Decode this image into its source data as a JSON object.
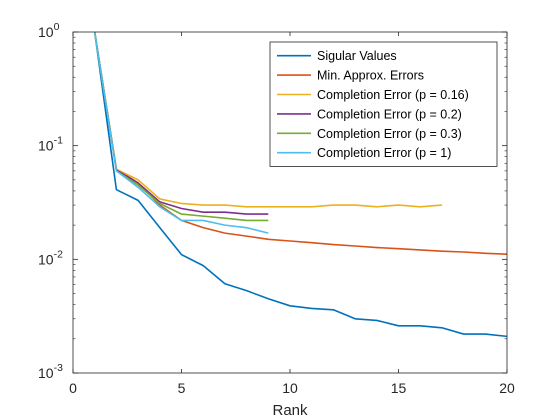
{
  "chart_data": {
    "type": "line",
    "title": "",
    "xlabel": "Rank",
    "ylabel": "",
    "xlim": [
      0,
      20
    ],
    "ylim": [
      0.001,
      1
    ],
    "yscale": "log",
    "grid": false,
    "legend_position": "top-right",
    "x_ticks": [
      "0",
      "5",
      "10",
      "15",
      "20"
    ],
    "y_ticks": [
      {
        "base": "10",
        "exp": "0"
      },
      {
        "base": "10",
        "exp": "-1"
      },
      {
        "base": "10",
        "exp": "-2"
      },
      {
        "base": "10",
        "exp": "-3"
      }
    ],
    "series": [
      {
        "name": "Sigular Values",
        "color": "#0072BD",
        "x": [
          1,
          2,
          3,
          4,
          5,
          6,
          7,
          8,
          9,
          10,
          11,
          12,
          13,
          14,
          15,
          16,
          17,
          18,
          19,
          20
        ],
        "y": [
          1.0,
          0.041,
          0.033,
          0.019,
          0.011,
          0.0088,
          0.0061,
          0.0053,
          0.0045,
          0.0039,
          0.0037,
          0.0036,
          0.003,
          0.0029,
          0.0026,
          0.0026,
          0.0025,
          0.0022,
          0.0022,
          0.0021
        ]
      },
      {
        "name": "Min. Approx. Errors",
        "color": "#D95319",
        "x": [
          1,
          2,
          3,
          4,
          5,
          6,
          7,
          8,
          9,
          10,
          11,
          12,
          13,
          14,
          15,
          16,
          17,
          18,
          19,
          20
        ],
        "y": [
          1.0,
          0.062,
          0.047,
          0.03,
          0.022,
          0.019,
          0.017,
          0.016,
          0.015,
          0.0145,
          0.014,
          0.0135,
          0.0131,
          0.0127,
          0.0124,
          0.0121,
          0.0118,
          0.0116,
          0.0113,
          0.0111
        ]
      },
      {
        "name": "Completion Error (p = 0.16)",
        "color": "#EDB120",
        "x": [
          1,
          2,
          3,
          4,
          5,
          6,
          7,
          8,
          9,
          10,
          11,
          12,
          13,
          14,
          15,
          16,
          17
        ],
        "y": [
          1.0,
          0.062,
          0.05,
          0.034,
          0.031,
          0.03,
          0.03,
          0.029,
          0.029,
          0.029,
          0.029,
          0.03,
          0.03,
          0.029,
          0.03,
          0.029,
          0.03
        ]
      },
      {
        "name": "Completion Error (p = 0.2)",
        "color": "#7E2F8E",
        "x": [
          1,
          2,
          3,
          4,
          5,
          6,
          7,
          8,
          9
        ],
        "y": [
          1.0,
          0.061,
          0.047,
          0.032,
          0.028,
          0.026,
          0.026,
          0.025,
          0.025
        ]
      },
      {
        "name": "Completion Error (p = 0.3)",
        "color": "#77AC30",
        "x": [
          1,
          2,
          3,
          4,
          5,
          6,
          7,
          8,
          9
        ],
        "y": [
          1.0,
          0.06,
          0.045,
          0.031,
          0.025,
          0.024,
          0.023,
          0.022,
          0.022
        ]
      },
      {
        "name": "Completion Error (p = 1)",
        "color": "#4DBEEE",
        "x": [
          1,
          2,
          3,
          4,
          5,
          6,
          7,
          8,
          9
        ],
        "y": [
          1.0,
          0.06,
          0.043,
          0.029,
          0.022,
          0.022,
          0.02,
          0.019,
          0.017
        ]
      }
    ]
  }
}
